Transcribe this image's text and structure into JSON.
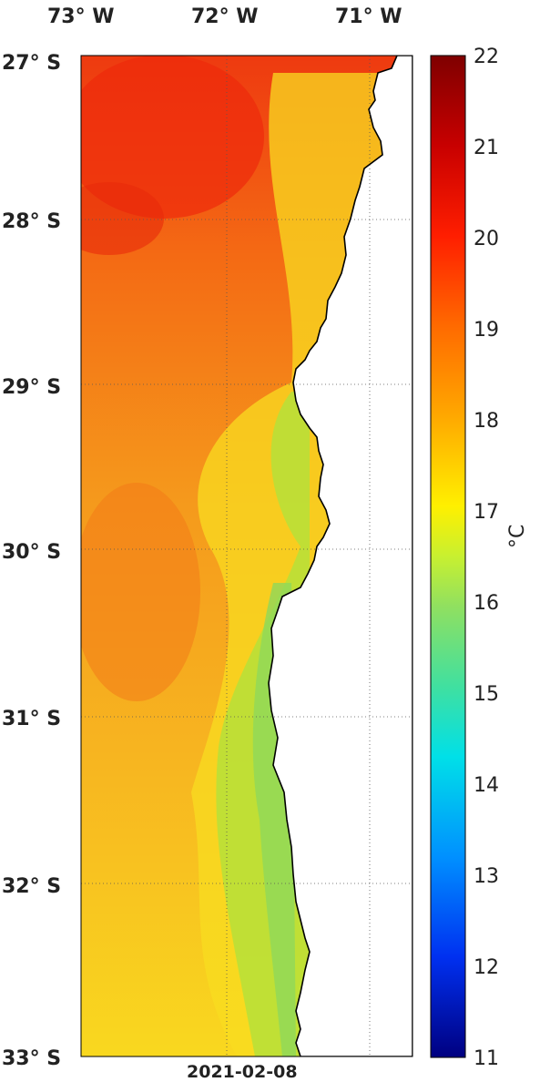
{
  "map": {
    "lon_labels": [
      "73° W",
      "72° W",
      "71° W"
    ],
    "lat_labels": [
      "27° S",
      "28° S",
      "29° S",
      "30° S",
      "31° S",
      "32° S",
      "33° S"
    ],
    "date": "2021-02-08",
    "colorbar": {
      "ticks": [
        "22",
        "21",
        "20",
        "19",
        "18",
        "17",
        "16",
        "15",
        "14",
        "13",
        "12",
        "11"
      ],
      "unit": "°C",
      "range": [
        11,
        22
      ]
    },
    "gridlines": "dotted",
    "land_color": "#ffffff"
  }
}
